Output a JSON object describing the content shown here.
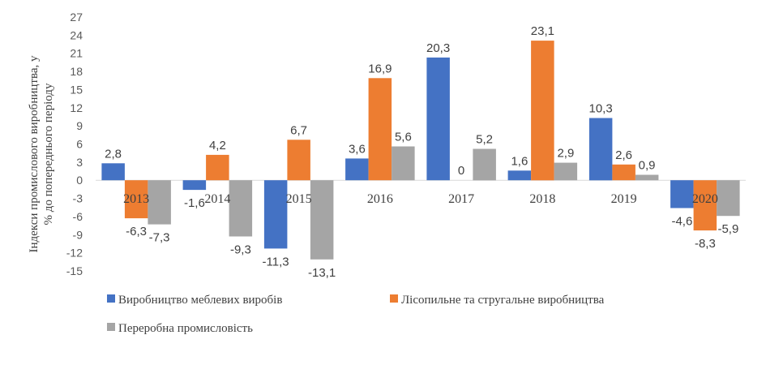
{
  "chart_data": {
    "type": "bar",
    "categories": [
      "2013",
      "2014",
      "2015",
      "2016",
      "2017",
      "2018",
      "2019",
      "2020"
    ],
    "series": [
      {
        "name": "Виробництво меблевих виробів",
        "color": "#4472C4",
        "values": [
          2.8,
          -1.6,
          -11.3,
          3.6,
          20.3,
          1.6,
          10.3,
          -4.6
        ],
        "labels": [
          "2,8",
          "-1,6",
          "-11,3",
          "3,6",
          "20,3",
          "1,6",
          "10,3",
          "-4,6"
        ]
      },
      {
        "name": "Лісопильне та стругальне виробництва",
        "color": "#ED7D31",
        "values": [
          -6.3,
          4.2,
          6.7,
          16.9,
          0,
          23.1,
          2.6,
          -8.3
        ],
        "labels": [
          "-6,3",
          "4,2",
          "6,7",
          "16,9",
          "0",
          "23,1",
          "2,6",
          "-8,3"
        ]
      },
      {
        "name": "Переробна промисловість",
        "color": "#A5A5A5",
        "values": [
          -7.3,
          -9.3,
          -13.1,
          5.6,
          5.2,
          2.9,
          0.9,
          -5.9
        ],
        "labels": [
          "-7,3",
          "-9,3",
          "-13,1",
          "5,6",
          "5,2",
          "2,9",
          "0,9",
          "-5,9"
        ]
      }
    ],
    "ylabel": "Індекси промислового виробництва, у % до попереднього періоду",
    "ylabel_lines": [
      "Індекси промислового виробництва, у",
      "% до попереднього періоду"
    ],
    "ylim": [
      -15,
      27
    ],
    "yticks": [
      27,
      24,
      21,
      18,
      15,
      12,
      9,
      6,
      3,
      0,
      -3,
      -6,
      -9,
      -12,
      -15
    ],
    "grid": false,
    "legend_position": "bottom"
  }
}
